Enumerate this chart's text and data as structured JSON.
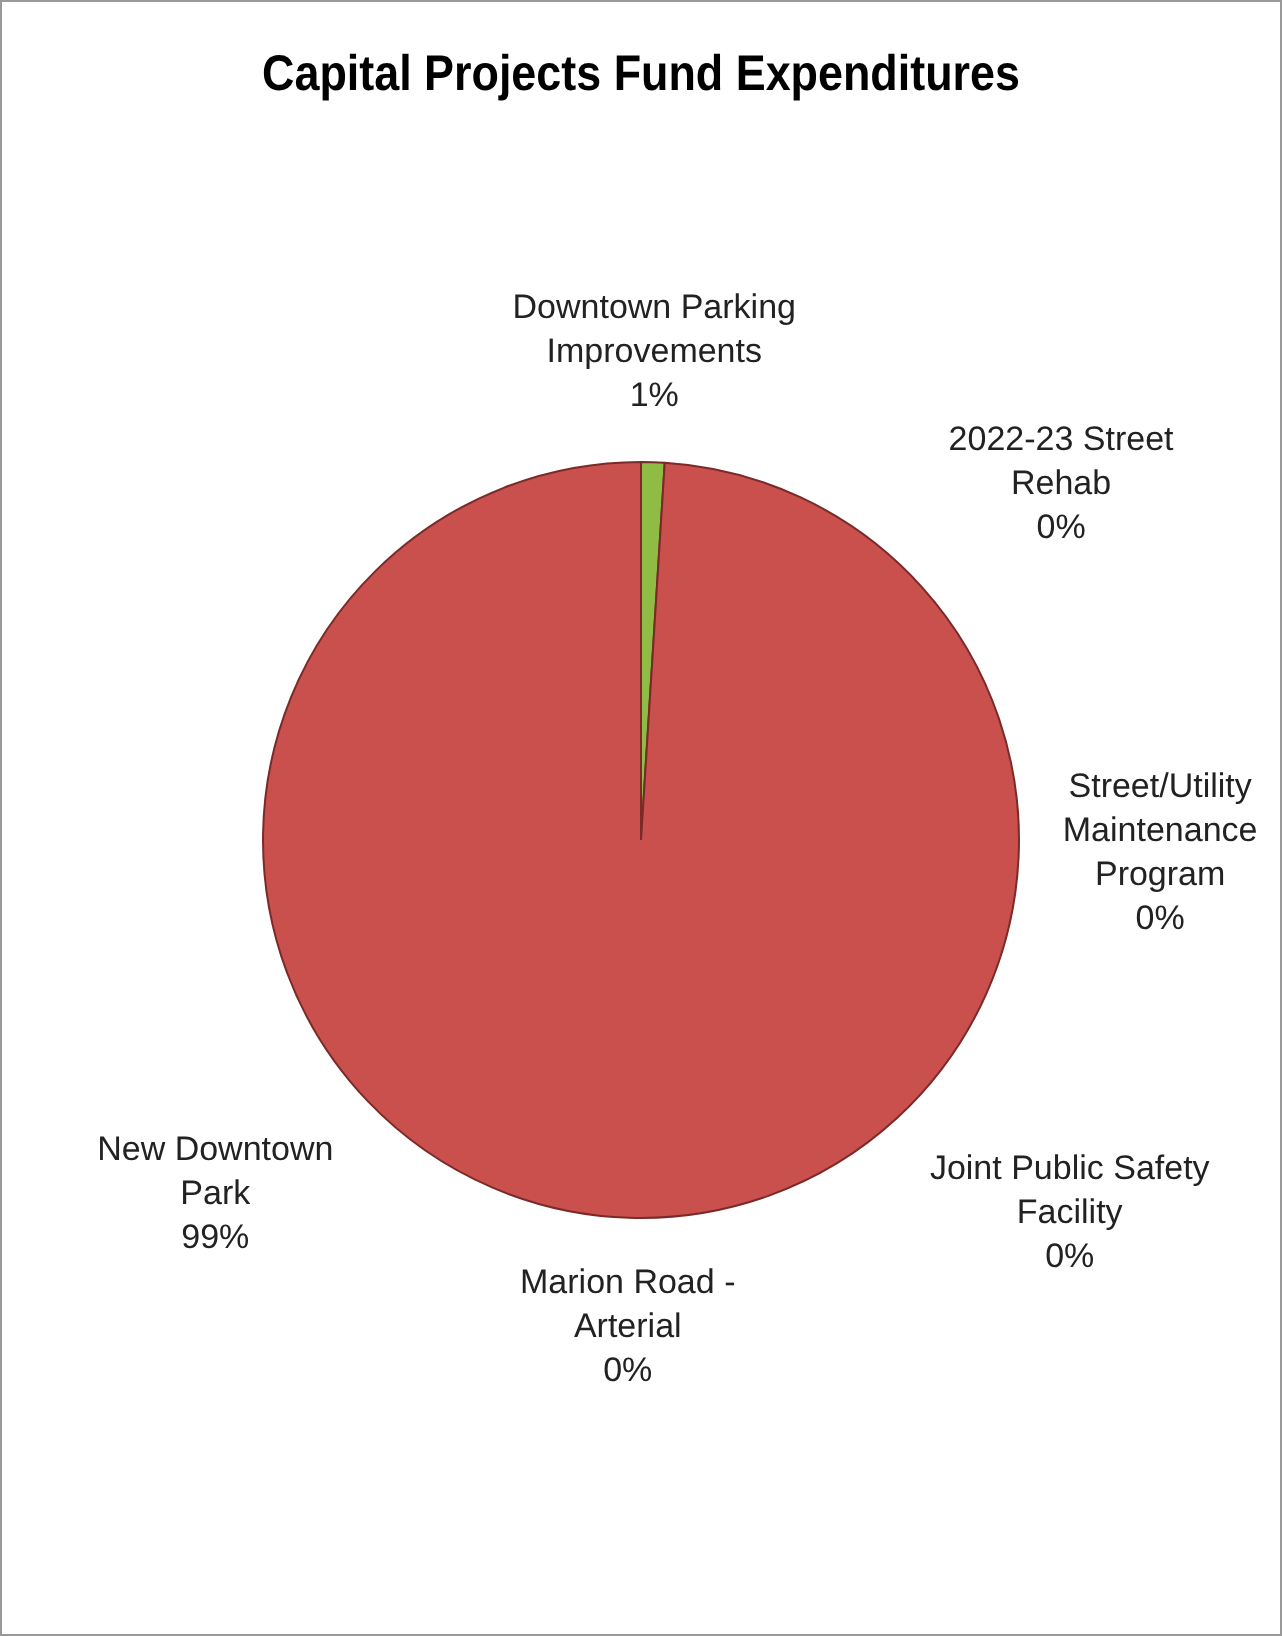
{
  "chart_data": {
    "type": "pie",
    "title": "Capital Projects Fund Expenditures",
    "categories": [
      "Downtown Parking Improvements",
      "2022-23 Street Rehab",
      "Street/Utility Maintenance Program",
      "Joint Public Safety Facility",
      "Marion Road - Arterial",
      "New Downtown Park"
    ],
    "values": [
      1,
      0,
      0,
      0,
      0,
      99
    ],
    "colors": [
      "#8fbc45",
      "#c0504d",
      "#c0504d",
      "#c0504d",
      "#c0504d",
      "#c9504d"
    ],
    "value_labels": [
      "1%",
      "0%",
      "0%",
      "0%",
      "0%",
      "99%"
    ],
    "legend": false
  }
}
